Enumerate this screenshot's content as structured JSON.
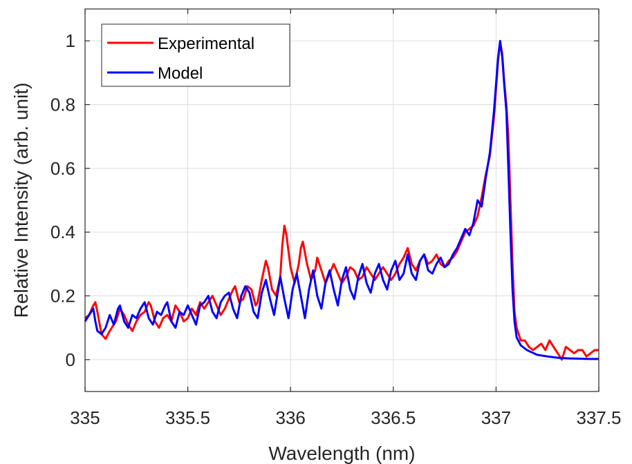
{
  "chart_data": {
    "type": "line",
    "xlabel": "Wavelength (nm)",
    "ylabel": "Relative Intensity (arb. unit)",
    "xlim": [
      335,
      337.5
    ],
    "ylim": [
      -0.1,
      1.1
    ],
    "xticks": [
      335,
      335.5,
      336,
      336.5,
      337,
      337.5
    ],
    "xtick_labels": [
      "335",
      "335.5",
      "336",
      "336.5",
      "337",
      "337.5"
    ],
    "yticks": [
      0,
      0.2,
      0.4,
      0.6,
      0.8,
      1
    ],
    "ytick_labels": [
      "0",
      "0.2",
      "0.4",
      "0.6",
      "0.8",
      "1"
    ],
    "grid": true,
    "legend_position": "top-left",
    "series": [
      {
        "name": "Experimental",
        "color": "#ff0000",
        "points": [
          [
            335.0,
            0.13
          ],
          [
            335.02,
            0.14
          ],
          [
            335.04,
            0.17
          ],
          [
            335.05,
            0.18
          ],
          [
            335.06,
            0.15
          ],
          [
            335.08,
            0.08
          ],
          [
            335.1,
            0.065
          ],
          [
            335.12,
            0.09
          ],
          [
            335.15,
            0.12
          ],
          [
            335.17,
            0.16
          ],
          [
            335.19,
            0.14
          ],
          [
            335.21,
            0.11
          ],
          [
            335.23,
            0.09
          ],
          [
            335.25,
            0.12
          ],
          [
            335.27,
            0.14
          ],
          [
            335.29,
            0.15
          ],
          [
            335.31,
            0.18
          ],
          [
            335.32,
            0.17
          ],
          [
            335.34,
            0.12
          ],
          [
            335.36,
            0.1
          ],
          [
            335.38,
            0.13
          ],
          [
            335.4,
            0.14
          ],
          [
            335.42,
            0.12
          ],
          [
            335.44,
            0.17
          ],
          [
            335.46,
            0.15
          ],
          [
            335.48,
            0.12
          ],
          [
            335.5,
            0.13
          ],
          [
            335.52,
            0.16
          ],
          [
            335.54,
            0.14
          ],
          [
            335.56,
            0.18
          ],
          [
            335.58,
            0.16
          ],
          [
            335.6,
            0.18
          ],
          [
            335.62,
            0.2
          ],
          [
            335.64,
            0.17
          ],
          [
            335.66,
            0.14
          ],
          [
            335.68,
            0.16
          ],
          [
            335.7,
            0.19
          ],
          [
            335.72,
            0.22
          ],
          [
            335.73,
            0.23
          ],
          [
            335.75,
            0.18
          ],
          [
            335.77,
            0.19
          ],
          [
            335.79,
            0.23
          ],
          [
            335.81,
            0.22
          ],
          [
            335.83,
            0.17
          ],
          [
            335.84,
            0.18
          ],
          [
            335.86,
            0.25
          ],
          [
            335.88,
            0.31
          ],
          [
            335.89,
            0.29
          ],
          [
            335.91,
            0.22
          ],
          [
            335.93,
            0.2
          ],
          [
            335.95,
            0.26
          ],
          [
            335.96,
            0.36
          ],
          [
            335.97,
            0.42
          ],
          [
            335.98,
            0.39
          ],
          [
            336.0,
            0.29
          ],
          [
            336.02,
            0.24
          ],
          [
            336.04,
            0.3
          ],
          [
            336.05,
            0.35
          ],
          [
            336.06,
            0.37
          ],
          [
            336.08,
            0.3
          ],
          [
            336.1,
            0.25
          ],
          [
            336.12,
            0.28
          ],
          [
            336.13,
            0.32
          ],
          [
            336.15,
            0.28
          ],
          [
            336.17,
            0.24
          ],
          [
            336.19,
            0.27
          ],
          [
            336.21,
            0.3
          ],
          [
            336.23,
            0.27
          ],
          [
            336.25,
            0.24
          ],
          [
            336.27,
            0.26
          ],
          [
            336.29,
            0.29
          ],
          [
            336.31,
            0.28
          ],
          [
            336.33,
            0.25
          ],
          [
            336.35,
            0.26
          ],
          [
            336.37,
            0.29
          ],
          [
            336.39,
            0.27
          ],
          [
            336.41,
            0.25
          ],
          [
            336.43,
            0.27
          ],
          [
            336.45,
            0.29
          ],
          [
            336.47,
            0.27
          ],
          [
            336.49,
            0.25
          ],
          [
            336.51,
            0.27
          ],
          [
            336.53,
            0.3
          ],
          [
            336.55,
            0.32
          ],
          [
            336.57,
            0.35
          ],
          [
            336.59,
            0.3
          ],
          [
            336.61,
            0.28
          ],
          [
            336.63,
            0.31
          ],
          [
            336.65,
            0.33
          ],
          [
            336.67,
            0.3
          ],
          [
            336.69,
            0.31
          ],
          [
            336.71,
            0.33
          ],
          [
            336.73,
            0.3
          ],
          [
            336.75,
            0.29
          ],
          [
            336.77,
            0.31
          ],
          [
            336.79,
            0.32
          ],
          [
            336.81,
            0.34
          ],
          [
            336.83,
            0.37
          ],
          [
            336.85,
            0.4
          ],
          [
            336.87,
            0.41
          ],
          [
            336.89,
            0.42
          ],
          [
            336.91,
            0.45
          ],
          [
            336.93,
            0.51
          ],
          [
            336.95,
            0.58
          ],
          [
            336.97,
            0.64
          ],
          [
            336.99,
            0.76
          ],
          [
            337.01,
            0.94
          ],
          [
            337.02,
            0.995
          ],
          [
            337.03,
            0.96
          ],
          [
            337.04,
            0.87
          ],
          [
            337.05,
            0.8
          ],
          [
            337.06,
            0.7
          ],
          [
            337.07,
            0.5
          ],
          [
            337.08,
            0.3
          ],
          [
            337.09,
            0.15
          ],
          [
            337.1,
            0.1
          ],
          [
            337.12,
            0.06
          ],
          [
            337.14,
            0.06
          ],
          [
            337.16,
            0.04
          ],
          [
            337.18,
            0.03
          ],
          [
            337.2,
            0.04
          ],
          [
            337.22,
            0.05
          ],
          [
            337.24,
            0.03
          ],
          [
            337.26,
            0.06
          ],
          [
            337.28,
            0.04
          ],
          [
            337.3,
            0.02
          ],
          [
            337.32,
            0.0
          ],
          [
            337.34,
            0.04
          ],
          [
            337.36,
            0.03
          ],
          [
            337.38,
            0.02
          ],
          [
            337.4,
            0.03
          ],
          [
            337.42,
            0.03
          ],
          [
            337.44,
            0.01
          ],
          [
            337.46,
            0.02
          ],
          [
            337.48,
            0.03
          ],
          [
            337.5,
            0.03
          ]
        ]
      },
      {
        "name": "Model",
        "color": "#0000ff",
        "points": [
          [
            335.0,
            0.12
          ],
          [
            335.02,
            0.14
          ],
          [
            335.04,
            0.16
          ],
          [
            335.05,
            0.12
          ],
          [
            335.06,
            0.09
          ],
          [
            335.08,
            0.08
          ],
          [
            335.1,
            0.1
          ],
          [
            335.12,
            0.14
          ],
          [
            335.14,
            0.11
          ],
          [
            335.16,
            0.16
          ],
          [
            335.17,
            0.17
          ],
          [
            335.19,
            0.12
          ],
          [
            335.21,
            0.1
          ],
          [
            335.23,
            0.14
          ],
          [
            335.25,
            0.13
          ],
          [
            335.27,
            0.16
          ],
          [
            335.29,
            0.18
          ],
          [
            335.31,
            0.13
          ],
          [
            335.33,
            0.11
          ],
          [
            335.35,
            0.15
          ],
          [
            335.37,
            0.14
          ],
          [
            335.39,
            0.17
          ],
          [
            335.4,
            0.18
          ],
          [
            335.42,
            0.12
          ],
          [
            335.44,
            0.1
          ],
          [
            335.46,
            0.15
          ],
          [
            335.48,
            0.14
          ],
          [
            335.5,
            0.17
          ],
          [
            335.52,
            0.14
          ],
          [
            335.54,
            0.11
          ],
          [
            335.56,
            0.17
          ],
          [
            335.58,
            0.18
          ],
          [
            335.6,
            0.2
          ],
          [
            335.62,
            0.15
          ],
          [
            335.64,
            0.13
          ],
          [
            335.66,
            0.18
          ],
          [
            335.68,
            0.2
          ],
          [
            335.7,
            0.21
          ],
          [
            335.72,
            0.16
          ],
          [
            335.74,
            0.13
          ],
          [
            335.76,
            0.2
          ],
          [
            335.78,
            0.23
          ],
          [
            335.8,
            0.21
          ],
          [
            335.82,
            0.15
          ],
          [
            335.84,
            0.13
          ],
          [
            335.86,
            0.21
          ],
          [
            335.88,
            0.25
          ],
          [
            335.9,
            0.19
          ],
          [
            335.92,
            0.14
          ],
          [
            335.94,
            0.22
          ],
          [
            335.95,
            0.26
          ],
          [
            335.97,
            0.19
          ],
          [
            335.99,
            0.13
          ],
          [
            336.01,
            0.22
          ],
          [
            336.03,
            0.27
          ],
          [
            336.05,
            0.2
          ],
          [
            336.07,
            0.13
          ],
          [
            336.09,
            0.22
          ],
          [
            336.11,
            0.28
          ],
          [
            336.13,
            0.2
          ],
          [
            336.15,
            0.16
          ],
          [
            336.17,
            0.24
          ],
          [
            336.19,
            0.28
          ],
          [
            336.21,
            0.22
          ],
          [
            336.23,
            0.17
          ],
          [
            336.25,
            0.25
          ],
          [
            336.27,
            0.29
          ],
          [
            336.29,
            0.22
          ],
          [
            336.31,
            0.19
          ],
          [
            336.33,
            0.26
          ],
          [
            336.35,
            0.3
          ],
          [
            336.37,
            0.24
          ],
          [
            336.39,
            0.21
          ],
          [
            336.41,
            0.27
          ],
          [
            336.43,
            0.3
          ],
          [
            336.45,
            0.25
          ],
          [
            336.47,
            0.22
          ],
          [
            336.49,
            0.28
          ],
          [
            336.51,
            0.31
          ],
          [
            336.53,
            0.25
          ],
          [
            336.55,
            0.27
          ],
          [
            336.57,
            0.33
          ],
          [
            336.59,
            0.27
          ],
          [
            336.61,
            0.25
          ],
          [
            336.63,
            0.31
          ],
          [
            336.65,
            0.33
          ],
          [
            336.67,
            0.28
          ],
          [
            336.69,
            0.27
          ],
          [
            336.71,
            0.3
          ],
          [
            336.73,
            0.32
          ],
          [
            336.75,
            0.29
          ],
          [
            336.77,
            0.3
          ],
          [
            336.79,
            0.33
          ],
          [
            336.81,
            0.35
          ],
          [
            336.83,
            0.38
          ],
          [
            336.85,
            0.41
          ],
          [
            336.87,
            0.39
          ],
          [
            336.89,
            0.43
          ],
          [
            336.91,
            0.5
          ],
          [
            336.93,
            0.48
          ],
          [
            336.95,
            0.57
          ],
          [
            336.97,
            0.65
          ],
          [
            336.99,
            0.78
          ],
          [
            337.01,
            0.95
          ],
          [
            337.02,
            1.0
          ],
          [
            337.03,
            0.95
          ],
          [
            337.04,
            0.86
          ],
          [
            337.05,
            0.78
          ],
          [
            337.06,
            0.6
          ],
          [
            337.07,
            0.4
          ],
          [
            337.08,
            0.22
          ],
          [
            337.09,
            0.12
          ],
          [
            337.1,
            0.07
          ],
          [
            337.12,
            0.045
          ],
          [
            337.15,
            0.03
          ],
          [
            337.2,
            0.015
          ],
          [
            337.25,
            0.01
          ],
          [
            337.3,
            0.006
          ],
          [
            337.35,
            0.004
          ],
          [
            337.4,
            0.003
          ],
          [
            337.45,
            0.002
          ],
          [
            337.5,
            0.002
          ]
        ]
      }
    ]
  }
}
